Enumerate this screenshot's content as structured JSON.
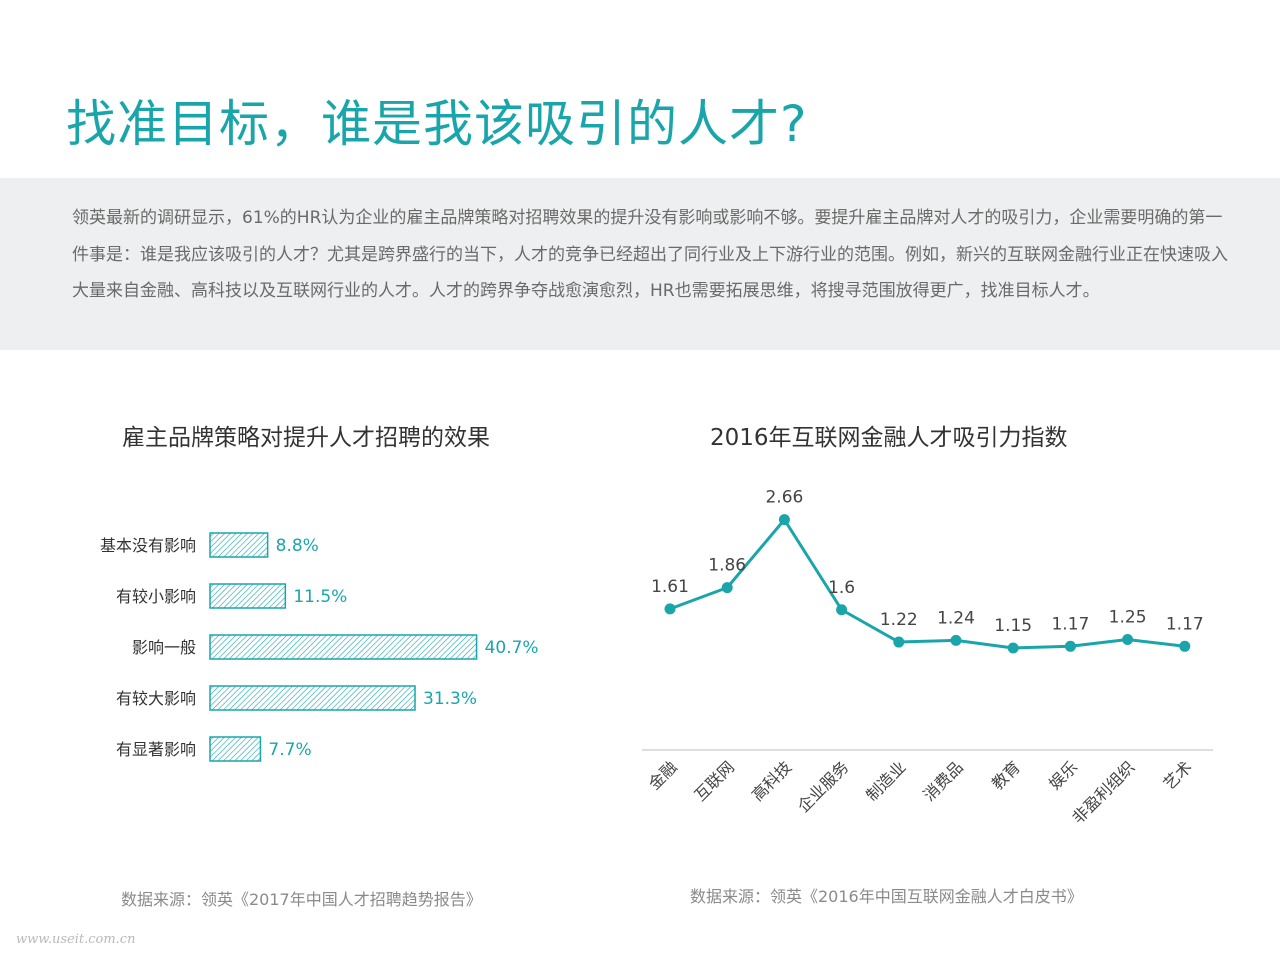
{
  "header": {
    "title": "找准目标，谁是我该吸引的人才?"
  },
  "intro": {
    "text": "领英最新的调研显示，61%的HR认为企业的雇主品牌策略对招聘效果的提升没有影响或影响不够。要提升雇主品牌对人才的吸引力，企业需要明确的第一件事是：谁是我应该吸引的人才？尤其是跨界盛行的当下，人才的竞争已经超出了同行业及上下游行业的范围。例如，新兴的互联网金融行业正在快速吸入大量来自金融、高科技以及互联网行业的人才。人才的跨界争夺战愈演愈烈，HR也需要拓展思维，将搜寻范围放得更广，找准目标人才。"
  },
  "colors": {
    "accent": "#1aa5ab",
    "text": "#333333",
    "muted": "#8a8a8a",
    "band": "#eeeff0"
  },
  "chart_data": [
    {
      "type": "bar",
      "orientation": "horizontal",
      "title": "雇主品牌策略对提升人才招聘的效果",
      "categories": [
        "基本没有影响",
        "有较小影响",
        "影响一般",
        "有较大影响",
        "有显著影响"
      ],
      "values": [
        8.8,
        11.5,
        40.7,
        31.3,
        7.7
      ],
      "value_labels": [
        "8.8%",
        "11.5%",
        "40.7%",
        "31.3%",
        "7.7%"
      ],
      "unit": "%",
      "bar_style": "hatched",
      "source": "数据来源：领英《2017年中国人才招聘趋势报告》"
    },
    {
      "type": "line",
      "title": "2016年互联网金融人才吸引力指数",
      "categories": [
        "金融",
        "互联网",
        "高科技",
        "企业服务",
        "制造业",
        "消费品",
        "教育",
        "娱乐",
        "非盈利组织",
        "艺术"
      ],
      "values": [
        1.61,
        1.86,
        2.66,
        1.6,
        1.22,
        1.24,
        1.15,
        1.17,
        1.25,
        1.17
      ],
      "value_labels": [
        "1.61",
        "1.86",
        "2.66",
        "1.6",
        "1.22",
        "1.24",
        "1.15",
        "1.17",
        "1.25",
        "1.17"
      ],
      "grid": false,
      "source": "数据来源：领英《2016年中国互联网金融人才白皮书》"
    }
  ],
  "footer": {
    "watermark": "www.useit.com.cn"
  }
}
